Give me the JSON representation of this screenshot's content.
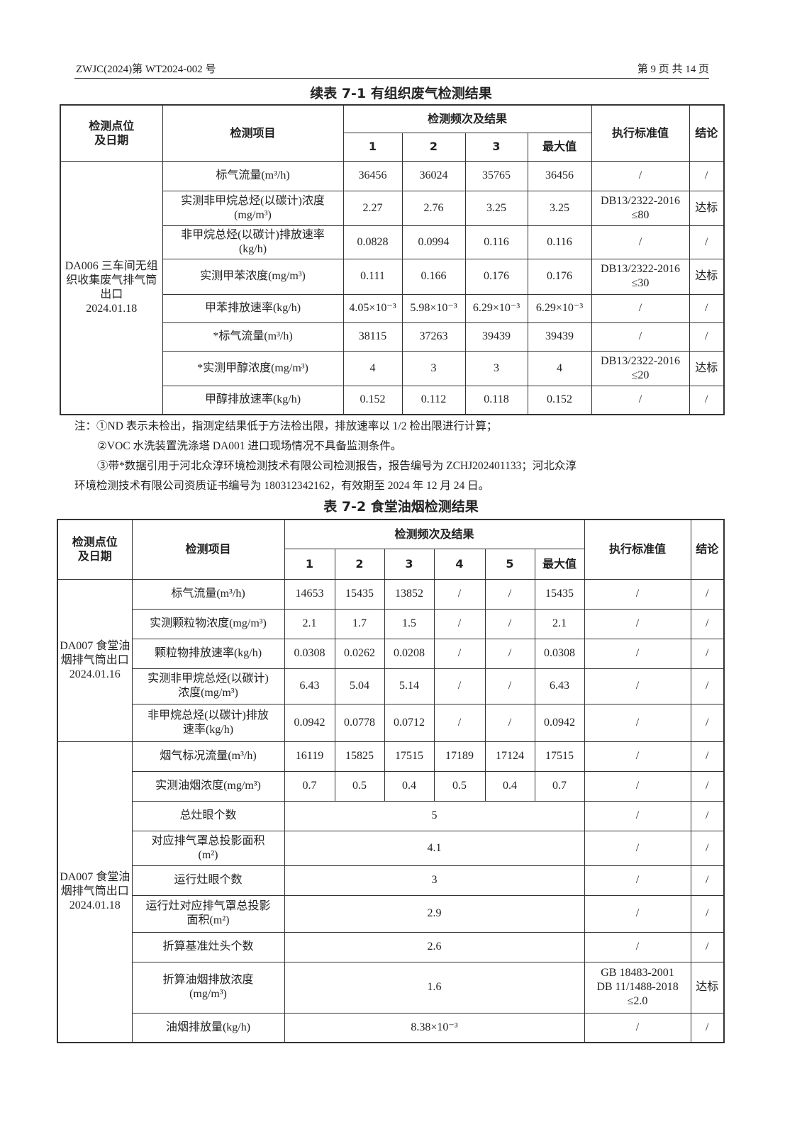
{
  "header": {
    "report_no": "ZWJC(2024)第 WT2024-002 号",
    "page": "第 9 页 共 14 页"
  },
  "table1": {
    "title": "续表 7-1 有组织废气检测结果",
    "headers": {
      "location": "检测点位\n及日期",
      "item": "检测项目",
      "freq": "检测频次及结果",
      "cols": [
        "1",
        "2",
        "3",
        "最大值"
      ],
      "standard": "执行标准值",
      "conclusion": "结论"
    },
    "groups": [
      {
        "location": "DA006 三车间无组织收集废气排气筒出口\n2024.01.18",
        "rows": [
          {
            "item": "标气流量(m³/h)",
            "values": [
              "36456",
              "36024",
              "35765",
              "36456"
            ],
            "standard": "/",
            "conclusion": "/"
          },
          {
            "item": "实测非甲烷总烃(以碳计)浓度\n(mg/m³)",
            "values": [
              "2.27",
              "2.76",
              "3.25",
              "3.25"
            ],
            "standard": "DB13/2322-2016\n≤80",
            "conclusion": "达标"
          },
          {
            "item": "非甲烷总烃(以碳计)排放速率\n(kg/h)",
            "values": [
              "0.0828",
              "0.0994",
              "0.116",
              "0.116"
            ],
            "standard": "/",
            "conclusion": "/"
          },
          {
            "item": "实测甲苯浓度(mg/m³)",
            "values": [
              "0.111",
              "0.166",
              "0.176",
              "0.176"
            ],
            "standard": "DB13/2322-2016\n≤30",
            "conclusion": "达标"
          },
          {
            "item": "甲苯排放速率(kg/h)",
            "values": [
              "4.05×10⁻³",
              "5.98×10⁻³",
              "6.29×10⁻³",
              "6.29×10⁻³"
            ],
            "standard": "/",
            "conclusion": "/"
          },
          {
            "item": "*标气流量(m³/h)",
            "values": [
              "38115",
              "37263",
              "39439",
              "39439"
            ],
            "standard": "/",
            "conclusion": "/"
          },
          {
            "item": "*实测甲醇浓度(mg/m³)",
            "values": [
              "4",
              "3",
              "3",
              "4"
            ],
            "standard": "DB13/2322-2016\n≤20",
            "conclusion": "达标"
          },
          {
            "item": "甲醇排放速率(kg/h)",
            "values": [
              "0.152",
              "0.112",
              "0.118",
              "0.152"
            ],
            "standard": "/",
            "conclusion": "/"
          }
        ]
      }
    ]
  },
  "notes": [
    "注：①ND 表示未检出，指测定结果低于方法检出限，排放速率以 1/2 检出限进行计算；",
    "②VOC 水洗装置洗涤塔 DA001 进口现场情况不具备监测条件。",
    "③带*数据引用于河北众淳环境检测技术有限公司检测报告，报告编号为 ZCHJ202401133；河北众淳",
    "环境检测技术有限公司资质证书编号为 180312342162，有效期至 2024 年 12 月 24 日。"
  ],
  "table2": {
    "title": "表 7-2 食堂油烟检测结果",
    "headers": {
      "location": "检测点位\n及日期",
      "item": "检测项目",
      "freq": "检测频次及结果",
      "cols": [
        "1",
        "2",
        "3",
        "4",
        "5",
        "最大值"
      ],
      "standard": "执行标准值",
      "conclusion": "结论"
    },
    "groups": [
      {
        "location": "DA007 食堂油烟排气筒出口\n2024.01.16",
        "rows": [
          {
            "item": "标气流量(m³/h)",
            "values": [
              "14653",
              "15435",
              "13852",
              "/",
              "/",
              "15435"
            ],
            "standard": "/",
            "conclusion": "/"
          },
          {
            "item": "实测颗粒物浓度(mg/m³)",
            "values": [
              "2.1",
              "1.7",
              "1.5",
              "/",
              "/",
              "2.1"
            ],
            "standard": "/",
            "conclusion": "/"
          },
          {
            "item": "颗粒物排放速率(kg/h)",
            "values": [
              "0.0308",
              "0.0262",
              "0.0208",
              "/",
              "/",
              "0.0308"
            ],
            "standard": "/",
            "conclusion": "/"
          },
          {
            "item": "实测非甲烷总烃(以碳计)\n浓度(mg/m³)",
            "values": [
              "6.43",
              "5.04",
              "5.14",
              "/",
              "/",
              "6.43"
            ],
            "standard": "/",
            "conclusion": "/"
          },
          {
            "item": "非甲烷总烃(以碳计)排放\n速率(kg/h)",
            "values": [
              "0.0942",
              "0.0778",
              "0.0712",
              "/",
              "/",
              "0.0942"
            ],
            "standard": "/",
            "conclusion": "/"
          }
        ]
      },
      {
        "location": "DA007 食堂油烟排气筒出口\n2024.01.18",
        "rows": [
          {
            "item": "烟气标况流量(m³/h)",
            "values": [
              "16119",
              "15825",
              "17515",
              "17189",
              "17124",
              "17515"
            ],
            "standard": "/",
            "conclusion": "/"
          },
          {
            "item": "实测油烟浓度(mg/m³)",
            "values": [
              "0.7",
              "0.5",
              "0.4",
              "0.5",
              "0.4",
              "0.7"
            ],
            "standard": "/",
            "conclusion": "/"
          },
          {
            "item": "总灶眼个数",
            "values": [
              "5"
            ],
            "standard": "/",
            "conclusion": "/"
          },
          {
            "item": "对应排气罩总投影面积\n(m²)",
            "values": [
              "4.1"
            ],
            "standard": "/",
            "conclusion": "/"
          },
          {
            "item": "运行灶眼个数",
            "values": [
              "3"
            ],
            "standard": "/",
            "conclusion": "/"
          },
          {
            "item": "运行灶对应排气罩总投影\n面积(m²)",
            "values": [
              "2.9"
            ],
            "standard": "/",
            "conclusion": "/"
          },
          {
            "item": "折算基准灶头个数",
            "values": [
              "2.6"
            ],
            "standard": "/",
            "conclusion": "/"
          },
          {
            "item": "折算油烟排放浓度\n(mg/m³)",
            "values": [
              "1.6"
            ],
            "standard": "GB 18483-2001\nDB 11/1488-2018\n≤2.0",
            "conclusion": "达标"
          },
          {
            "item": "油烟排放量(kg/h)",
            "values": [
              "8.38×10⁻³"
            ],
            "standard": "/",
            "conclusion": "/"
          }
        ]
      }
    ]
  }
}
